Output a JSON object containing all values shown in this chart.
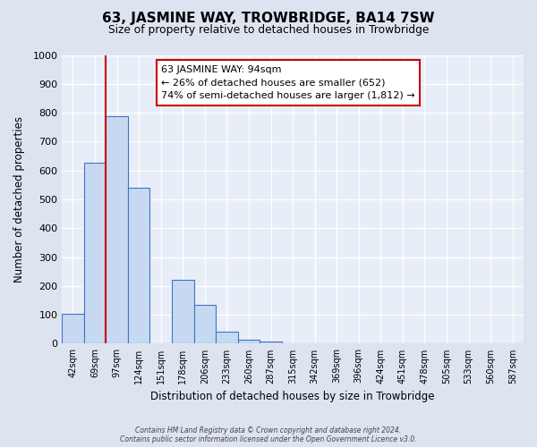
{
  "title": "63, JASMINE WAY, TROWBRIDGE, BA14 7SW",
  "subtitle": "Size of property relative to detached houses in Trowbridge",
  "xlabel": "Distribution of detached houses by size in Trowbridge",
  "ylabel": "Number of detached properties",
  "bin_labels": [
    "42sqm",
    "69sqm",
    "97sqm",
    "124sqm",
    "151sqm",
    "178sqm",
    "206sqm",
    "233sqm",
    "260sqm",
    "287sqm",
    "315sqm",
    "342sqm",
    "369sqm",
    "396sqm",
    "424sqm",
    "451sqm",
    "478sqm",
    "505sqm",
    "533sqm",
    "560sqm",
    "587sqm"
  ],
  "bar_values": [
    103,
    627,
    787,
    540,
    0,
    220,
    133,
    43,
    15,
    8,
    0,
    0,
    0,
    0,
    0,
    0,
    0,
    0,
    0,
    0,
    0
  ],
  "bar_color": "#c6d9f0",
  "bar_edge_color": "#4472c4",
  "annotation_title": "63 JASMINE WAY: 94sqm",
  "annotation_line1": "← 26% of detached houses are smaller (652)",
  "annotation_line2": "74% of semi-detached houses are larger (1,812) →",
  "annotation_box_color": "#ffffff",
  "annotation_box_edge_color": "#cc0000",
  "red_line_color": "#cc0000",
  "red_line_bin_index": 2,
  "ylim": [
    0,
    1000
  ],
  "yticks": [
    0,
    100,
    200,
    300,
    400,
    500,
    600,
    700,
    800,
    900,
    1000
  ],
  "footer_line1": "Contains HM Land Registry data © Crown copyright and database right 2024.",
  "footer_line2": "Contains public sector information licensed under the Open Government Licence v3.0.",
  "bg_color": "#dde4f0",
  "plot_bg_color": "#e8eef8"
}
